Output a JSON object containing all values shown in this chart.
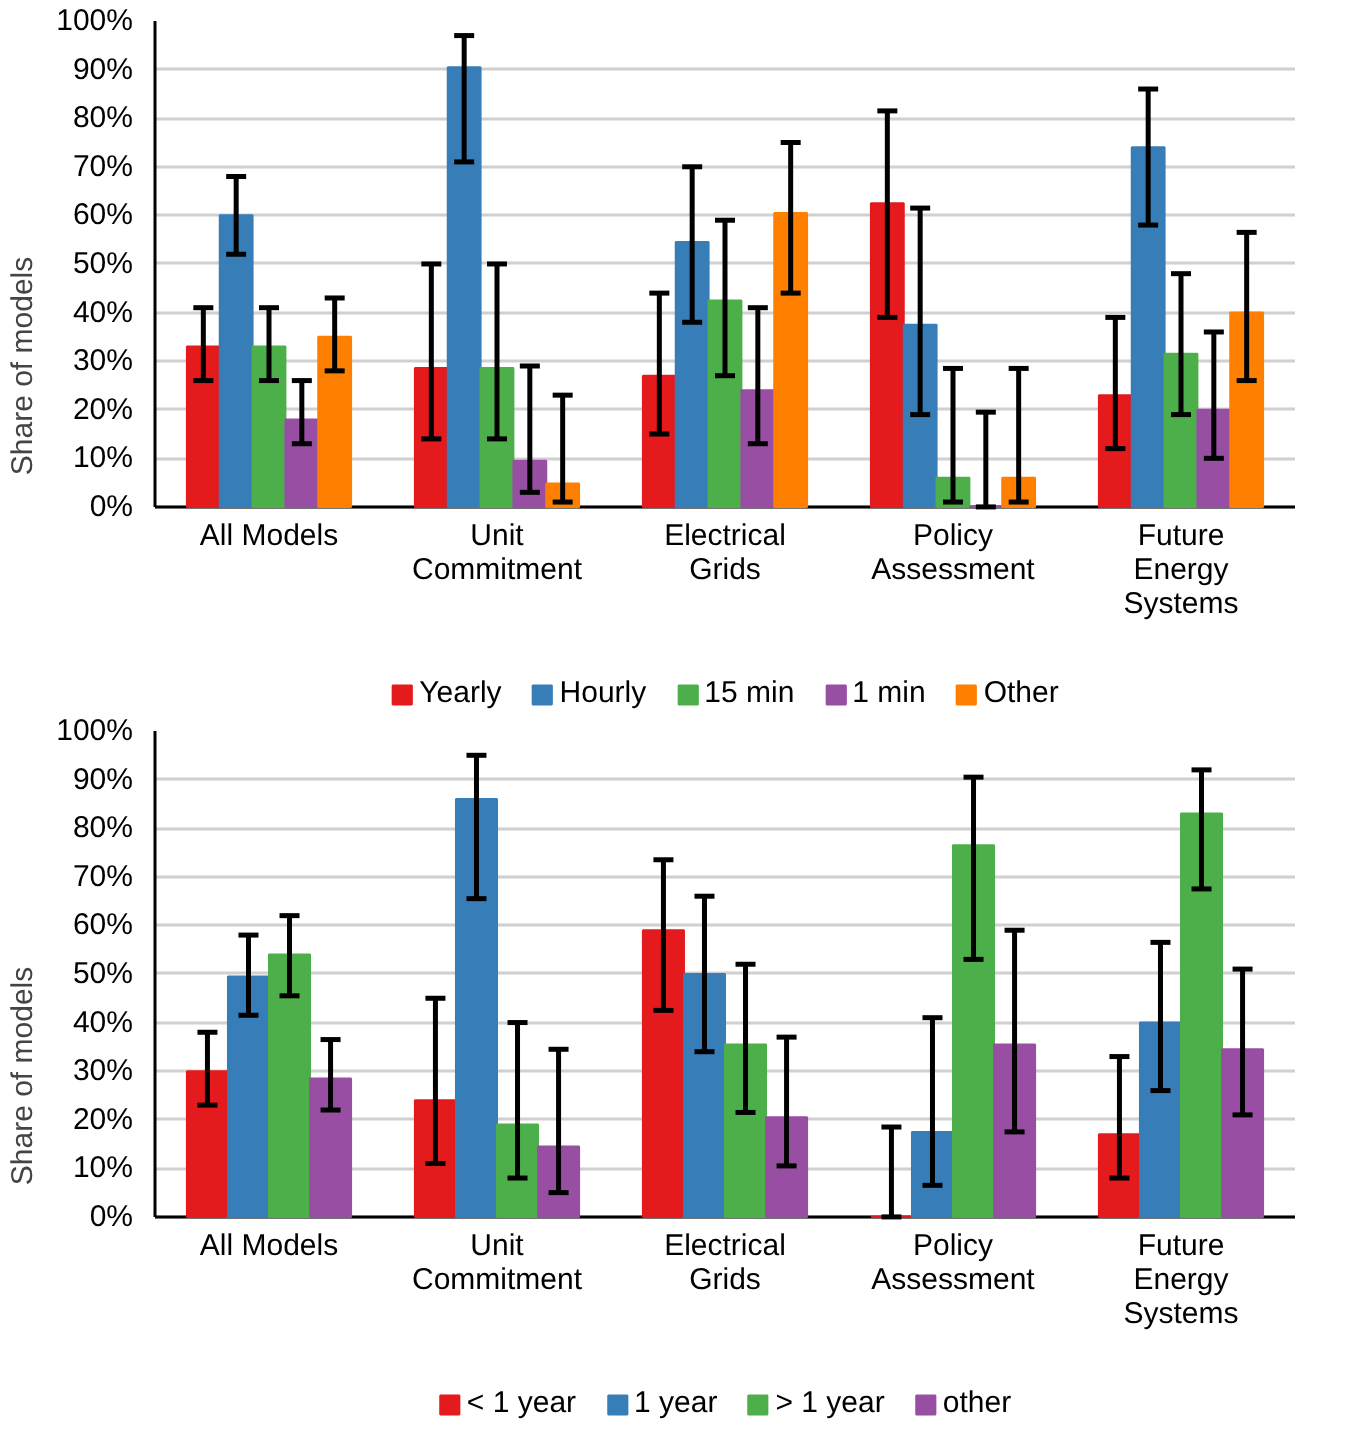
{
  "chart_data": [
    {
      "type": "bar",
      "ylabel": "Share of models",
      "categories": [
        "All Models",
        "Unit Commitment",
        "Electrical Grids",
        "Policy Assessment",
        "Future Energy Systems"
      ],
      "ylim": [
        0,
        100
      ],
      "yticks": [
        {
          "value": 0,
          "label": "0%"
        },
        {
          "value": 10,
          "label": "10%"
        },
        {
          "value": 20,
          "label": "20%"
        },
        {
          "value": 30,
          "label": "30%"
        },
        {
          "value": 40,
          "label": "40%"
        },
        {
          "value": 50,
          "label": "50%"
        },
        {
          "value": 60,
          "label": "60%"
        },
        {
          "value": 70,
          "label": "70%"
        },
        {
          "value": 80,
          "label": "80%"
        },
        {
          "value": 90,
          "label": "90%"
        },
        {
          "value": 100,
          "label": "100%"
        }
      ],
      "grid": "y",
      "legend": "bottom",
      "series": [
        {
          "name": "Yearly",
          "color": "#e41a1c",
          "values": [
            33,
            28.6,
            27,
            62.5,
            23
          ],
          "errors": [
            [
              26,
              41
            ],
            [
              14,
              50
            ],
            [
              15,
              44
            ],
            [
              39,
              81.5
            ],
            [
              12,
              39
            ]
          ]
        },
        {
          "name": "Hourly",
          "color": "#377eb8",
          "values": [
            60,
            90.5,
            54.5,
            37.5,
            74
          ],
          "errors": [
            [
              52,
              68
            ],
            [
              71,
              97
            ],
            [
              38,
              70
            ],
            [
              19,
              61.5
            ],
            [
              58,
              86
            ]
          ]
        },
        {
          "name": "15 min",
          "color": "#4daf4a",
          "values": [
            33,
            28.6,
            42.5,
            6,
            31.5
          ],
          "errors": [
            [
              26,
              41
            ],
            [
              14,
              50
            ],
            [
              27,
              59
            ],
            [
              1,
              28.5
            ],
            [
              19,
              48
            ]
          ]
        },
        {
          "name": "1 min",
          "color": "#984ea3",
          "values": [
            18,
            9.5,
            24,
            0,
            20
          ],
          "errors": [
            [
              13,
              26
            ],
            [
              3,
              29
            ],
            [
              13,
              41
            ],
            [
              0,
              19.5
            ],
            [
              10,
              36
            ]
          ]
        },
        {
          "name": "Other",
          "color": "#ff7f00",
          "values": [
            35,
            4.8,
            60.5,
            6,
            40
          ],
          "errors": [
            [
              28,
              43
            ],
            [
              1,
              23
            ],
            [
              44,
              75
            ],
            [
              1,
              28.5
            ],
            [
              26,
              56.5
            ]
          ]
        }
      ]
    },
    {
      "type": "bar",
      "ylabel": "Share of models",
      "categories": [
        "All Models",
        "Unit Commitment",
        "Electrical Grids",
        "Policy Assessment",
        "Future Energy Systems"
      ],
      "ylim": [
        0,
        100
      ],
      "yticks": [
        {
          "value": 0,
          "label": "0%"
        },
        {
          "value": 10,
          "label": "10%"
        },
        {
          "value": 20,
          "label": "20%"
        },
        {
          "value": 30,
          "label": "30%"
        },
        {
          "value": 40,
          "label": "40%"
        },
        {
          "value": 50,
          "label": "50%"
        },
        {
          "value": 60,
          "label": "60%"
        },
        {
          "value": 70,
          "label": "70%"
        },
        {
          "value": 80,
          "label": "80%"
        },
        {
          "value": 90,
          "label": "90%"
        },
        {
          "value": 100,
          "label": "100%"
        }
      ],
      "grid": "y",
      "legend": "bottom",
      "series": [
        {
          "name": "< 1 year",
          "color": "#e41a1c",
          "values": [
            30,
            24,
            59,
            0,
            17
          ],
          "errors": [
            [
              23,
              38
            ],
            [
              11,
              45
            ],
            [
              42.5,
              73.5
            ],
            [
              0,
              18.5
            ],
            [
              8,
              33
            ]
          ]
        },
        {
          "name": "1 year",
          "color": "#377eb8",
          "values": [
            49.5,
            86,
            50,
            17.5,
            40
          ],
          "errors": [
            [
              41.5,
              58
            ],
            [
              65.5,
              95
            ],
            [
              34,
              66
            ],
            [
              6.5,
              41
            ],
            [
              26,
              56.5
            ]
          ]
        },
        {
          "name": "> 1 year",
          "color": "#4daf4a",
          "values": [
            54,
            19,
            35.5,
            76.5,
            83
          ],
          "errors": [
            [
              45.5,
              62
            ],
            [
              8,
              40
            ],
            [
              21.5,
              52
            ],
            [
              53,
              90.5
            ],
            [
              67.5,
              92
            ]
          ]
        },
        {
          "name": "other",
          "color": "#984ea3",
          "values": [
            28.5,
            14.5,
            20.5,
            35.5,
            34.5
          ],
          "errors": [
            [
              22,
              36.5
            ],
            [
              5,
              34.5
            ],
            [
              10.5,
              37
            ],
            [
              17.5,
              59
            ],
            [
              21,
              51
            ]
          ]
        }
      ]
    }
  ]
}
